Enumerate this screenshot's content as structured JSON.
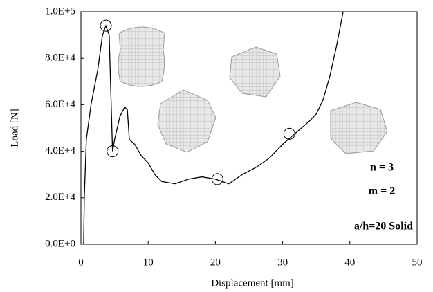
{
  "chart_data": {
    "type": "line",
    "x_label": "Displacement [mm]",
    "y_label": "Load [N]",
    "xlim": [
      0,
      50
    ],
    "xticks": [
      0,
      10,
      20,
      30,
      40,
      50
    ],
    "ylim": [
      0,
      100000
    ],
    "yticks": [
      {
        "value": 0,
        "label": "0.0E+0"
      },
      {
        "value": 20000,
        "label": "2.0E+4"
      },
      {
        "value": 40000,
        "label": "4.0E+4"
      },
      {
        "value": 60000,
        "label": "6.0E+4"
      },
      {
        "value": 80000,
        "label": "8.0E+4"
      },
      {
        "value": 100000,
        "label": "1.0E+5"
      }
    ],
    "series": [
      {
        "color": "#000000",
        "x": [
          0.4,
          0.5,
          0.8,
          1.5,
          2.5,
          3.2,
          3.7,
          4.2,
          4.5,
          4.7,
          5.0,
          5.8,
          6.5,
          6.9,
          7.2,
          8,
          9,
          10,
          11,
          12,
          14,
          16,
          18,
          20,
          22,
          24,
          26,
          28,
          30,
          32,
          34,
          35,
          36,
          37,
          38,
          39
        ],
        "values": [
          0,
          20000,
          45000,
          60000,
          75000,
          90000,
          94000,
          90000,
          60000,
          40000,
          45000,
          55000,
          59000,
          58000,
          45000,
          43000,
          38000,
          35000,
          30000,
          27000,
          26000,
          28000,
          29000,
          28000,
          26000,
          30000,
          33000,
          37000,
          43000,
          48000,
          53000,
          56000,
          62000,
          72000,
          85000,
          100000
        ]
      }
    ],
    "markers": {
      "x": [
        3.7,
        4.7,
        20.3,
        31
      ],
      "values": [
        94000,
        40000,
        28000,
        47500
      ]
    },
    "annotations": [
      "n = 3",
      "m = 2",
      "a/h=20 Solid"
    ]
  }
}
